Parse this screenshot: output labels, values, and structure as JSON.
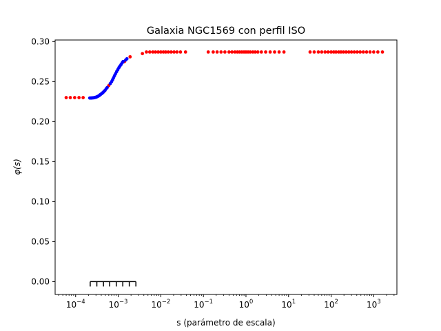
{
  "chart_data": {
    "type": "scatter",
    "title": "Galaxia NGC1569 con perfil ISO",
    "xlabel": "s (parámetro de escala)",
    "ylabel": "φ(s)",
    "xscale": "log",
    "xlim": [
      3.3e-05,
      3500
    ],
    "ylim": [
      -0.016,
      0.302
    ],
    "grid": false,
    "y_ticks": [
      {
        "value": 0.0,
        "label": "0.00"
      },
      {
        "value": 0.05,
        "label": "0.05"
      },
      {
        "value": 0.1,
        "label": "0.10"
      },
      {
        "value": 0.15,
        "label": "0.15"
      },
      {
        "value": 0.2,
        "label": "0.20"
      },
      {
        "value": 0.25,
        "label": "0.25"
      },
      {
        "value": 0.3,
        "label": "0.30"
      }
    ],
    "x_ticks": [
      {
        "value": 0.0001,
        "base": "10",
        "exp": "−4"
      },
      {
        "value": 0.001,
        "base": "10",
        "exp": "−3"
      },
      {
        "value": 0.01,
        "base": "10",
        "exp": "−2"
      },
      {
        "value": 0.1,
        "base": "10",
        "exp": "−1"
      },
      {
        "value": 1,
        "base": "10",
        "exp": "0"
      },
      {
        "value": 10,
        "base": "10",
        "exp": "1"
      },
      {
        "value": 100,
        "base": "10",
        "exp": "2"
      },
      {
        "value": 1000,
        "base": "10",
        "exp": "3"
      }
    ],
    "series": [
      {
        "color": "#ff0000",
        "marker": "dot",
        "points": [
          [
            6e-05,
            0.23
          ],
          [
            7.5e-05,
            0.23
          ],
          [
            9.5e-05,
            0.23
          ],
          [
            0.00012,
            0.23
          ],
          [
            0.00015,
            0.23
          ],
          [
            0.00047,
            0.238
          ],
          [
            0.0006,
            0.245
          ],
          [
            0.0014,
            0.275
          ],
          [
            0.0019,
            0.281
          ],
          [
            0.0037,
            0.285
          ],
          [
            0.0046,
            0.287
          ],
          [
            0.0055,
            0.287
          ],
          [
            0.0065,
            0.287
          ],
          [
            0.0075,
            0.287
          ],
          [
            0.0087,
            0.287
          ],
          [
            0.01,
            0.287
          ],
          [
            0.0115,
            0.287
          ],
          [
            0.013,
            0.287
          ],
          [
            0.015,
            0.287
          ],
          [
            0.0175,
            0.287
          ],
          [
            0.0205,
            0.287
          ],
          [
            0.024,
            0.287
          ],
          [
            0.029,
            0.287
          ],
          [
            0.038,
            0.287
          ],
          [
            0.13,
            0.287
          ],
          [
            0.17,
            0.287
          ],
          [
            0.21,
            0.287
          ],
          [
            0.26,
            0.287
          ],
          [
            0.32,
            0.287
          ],
          [
            0.4,
            0.287
          ],
          [
            0.47,
            0.287
          ],
          [
            0.55,
            0.287
          ],
          [
            0.63,
            0.287
          ],
          [
            0.71,
            0.287
          ],
          [
            0.8,
            0.287
          ],
          [
            0.9,
            0.287
          ],
          [
            1.0,
            0.287
          ],
          [
            1.12,
            0.287
          ],
          [
            1.26,
            0.287
          ],
          [
            1.45,
            0.287
          ],
          [
            1.65,
            0.287
          ],
          [
            1.9,
            0.287
          ],
          [
            2.3,
            0.287
          ],
          [
            2.9,
            0.287
          ],
          [
            3.7,
            0.287
          ],
          [
            4.7,
            0.287
          ],
          [
            6.0,
            0.287
          ],
          [
            7.8,
            0.287
          ],
          [
            32,
            0.287
          ],
          [
            40,
            0.287
          ],
          [
            50,
            0.287
          ],
          [
            60,
            0.287
          ],
          [
            72,
            0.287
          ],
          [
            85,
            0.287
          ],
          [
            100,
            0.287
          ],
          [
            115,
            0.287
          ],
          [
            130,
            0.287
          ],
          [
            150,
            0.287
          ],
          [
            170,
            0.287
          ],
          [
            195,
            0.287
          ],
          [
            225,
            0.287
          ],
          [
            260,
            0.287
          ],
          [
            300,
            0.287
          ],
          [
            350,
            0.287
          ],
          [
            410,
            0.287
          ],
          [
            480,
            0.287
          ],
          [
            570,
            0.287
          ],
          [
            680,
            0.287
          ],
          [
            820,
            0.287
          ],
          [
            1000,
            0.287
          ],
          [
            1250,
            0.287
          ],
          [
            1600,
            0.287
          ]
        ]
      },
      {
        "color": "#0000ff",
        "marker": "dot",
        "points": [
          [
            0.000215,
            0.2295
          ],
          [
            0.000225,
            0.2295
          ],
          [
            0.000235,
            0.2295
          ],
          [
            0.000245,
            0.2297
          ],
          [
            0.000255,
            0.2297
          ],
          [
            0.000265,
            0.2298
          ],
          [
            0.000275,
            0.23
          ],
          [
            0.000285,
            0.2302
          ],
          [
            0.0003,
            0.2305
          ],
          [
            0.000315,
            0.231
          ],
          [
            0.00033,
            0.2315
          ],
          [
            0.000345,
            0.232
          ],
          [
            0.00036,
            0.2327
          ],
          [
            0.000375,
            0.2335
          ],
          [
            0.00039,
            0.2342
          ],
          [
            0.00041,
            0.235
          ],
          [
            0.00043,
            0.236
          ],
          [
            0.00045,
            0.237
          ],
          [
            0.00049,
            0.239
          ],
          [
            0.00052,
            0.241
          ],
          [
            0.00055,
            0.2425
          ],
          [
            0.00065,
            0.2475
          ],
          [
            0.0007,
            0.25
          ],
          [
            0.00074,
            0.2525
          ],
          [
            0.00078,
            0.255
          ],
          [
            0.00082,
            0.2575
          ],
          [
            0.00087,
            0.26
          ],
          [
            0.00092,
            0.2625
          ],
          [
            0.00098,
            0.265
          ],
          [
            0.00104,
            0.2675
          ],
          [
            0.0011,
            0.2695
          ],
          [
            0.00117,
            0.2715
          ],
          [
            0.00124,
            0.2735
          ],
          [
            0.0013,
            0.275
          ],
          [
            0.0015,
            0.277
          ],
          [
            0.0016,
            0.2785
          ]
        ]
      }
    ],
    "comb": {
      "color": "#000000",
      "y": 0.0,
      "tooth_top": 0.0,
      "x_values": [
        0.00022,
        0.000315,
        0.00045,
        0.00063,
        0.0009,
        0.00128,
        0.00182,
        0.0026
      ]
    }
  }
}
